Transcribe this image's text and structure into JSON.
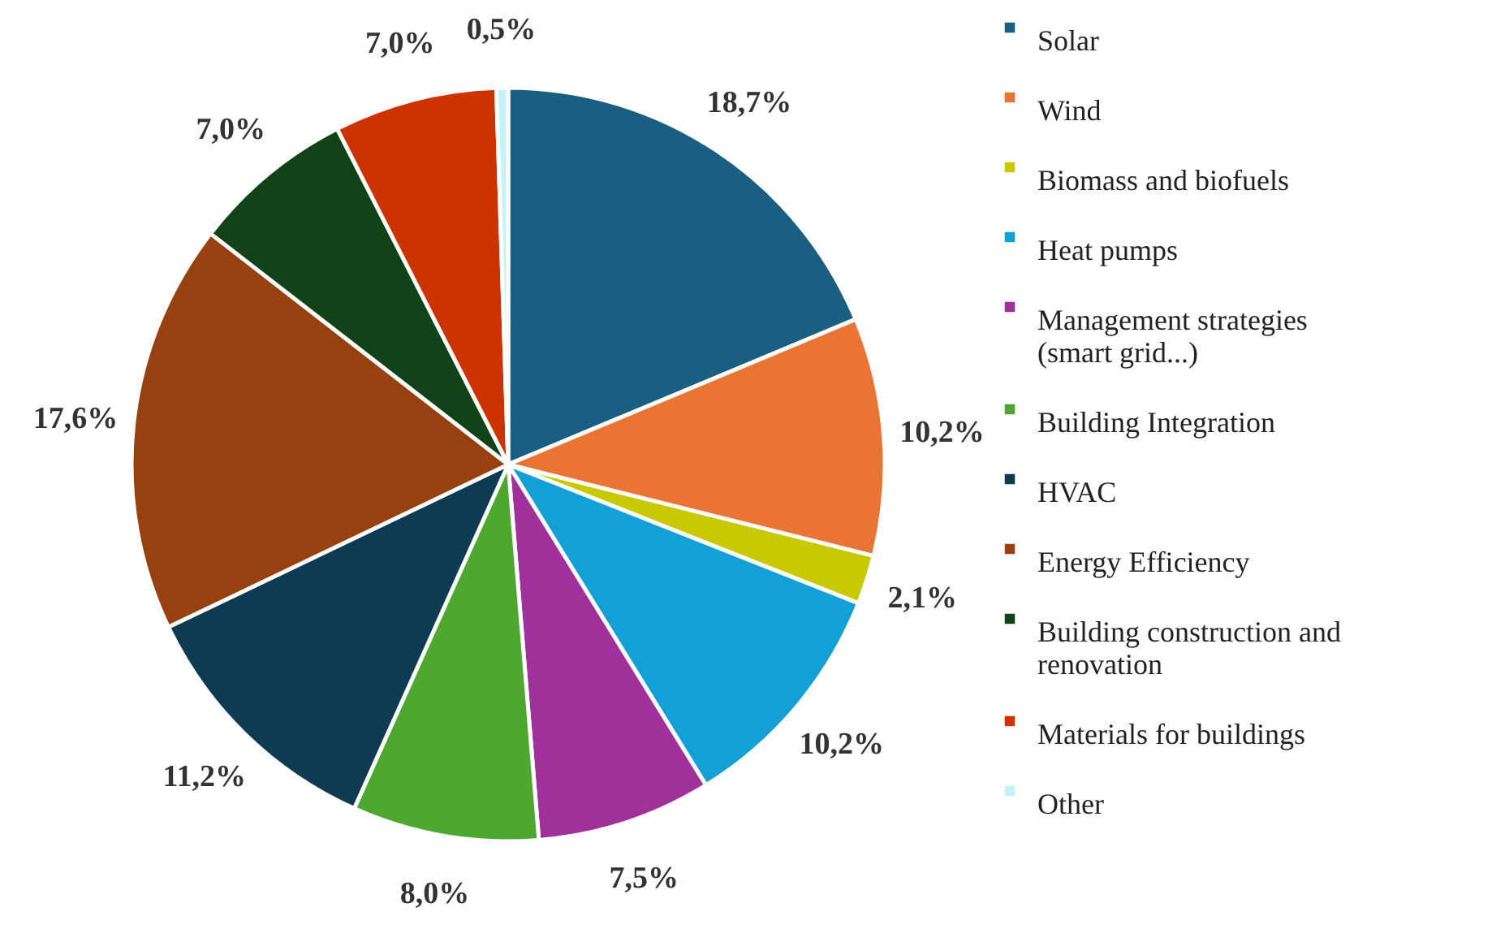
{
  "chart_data": {
    "type": "pie",
    "categories": [
      "Solar",
      "Wind",
      "Biomass and biofuels",
      "Heat pumps",
      "Management strategies (smart grid...)",
      "Building Integration",
      "HVAC",
      "Energy Efficiency",
      "Building construction and renovation",
      "Materials for buildings",
      "Other"
    ],
    "values": [
      18.7,
      10.2,
      2.1,
      10.2,
      7.5,
      8.0,
      11.2,
      17.6,
      7.0,
      7.0,
      0.5
    ],
    "value_labels": [
      "18,7%",
      "10,2%",
      "2,1%",
      "10,2%",
      "7,5%",
      "8,0%",
      "11,2%",
      "17,6%",
      "7,0%",
      "7,0%",
      "0,5%"
    ],
    "colors": [
      "#1a5e82",
      "#ea7434",
      "#c9c900",
      "#13a0d6",
      "#a0309a",
      "#4ea72e",
      "#0e3a52",
      "#974010",
      "#124217",
      "#cc3300",
      "#c6f2f8"
    ],
    "legend": "right"
  }
}
